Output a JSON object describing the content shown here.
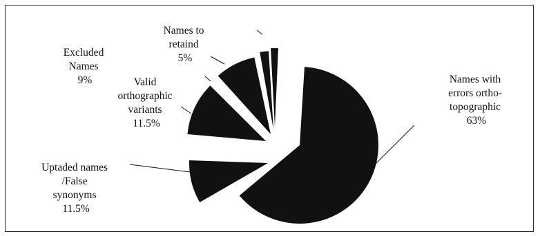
{
  "chart_data": {
    "type": "pie",
    "title": "",
    "exploded": true,
    "colors": {
      "slice": "#111111",
      "line": "#111111",
      "background": "#ffffff",
      "frame": "#2a2a2a"
    },
    "slices": [
      {
        "label_lines": [
          "Names with",
          "errors ortho-",
          "topographic",
          "63%"
        ],
        "value": 63
      },
      {
        "label_lines": [
          "Uptaded names",
          "/False",
          "synonyms",
          "11.5%"
        ],
        "value": 11.5
      },
      {
        "label_lines": [
          "Valid",
          "orthographic",
          "variants",
          "11.5%"
        ],
        "value": 11.5
      },
      {
        "label_lines": [
          "Excluded",
          "Names",
          "9%"
        ],
        "value": 9
      },
      {
        "label_lines": [
          "Names to",
          "retaind",
          "5%"
        ],
        "value": 5
      },
      {
        "label_lines": [],
        "value": null
      }
    ]
  }
}
